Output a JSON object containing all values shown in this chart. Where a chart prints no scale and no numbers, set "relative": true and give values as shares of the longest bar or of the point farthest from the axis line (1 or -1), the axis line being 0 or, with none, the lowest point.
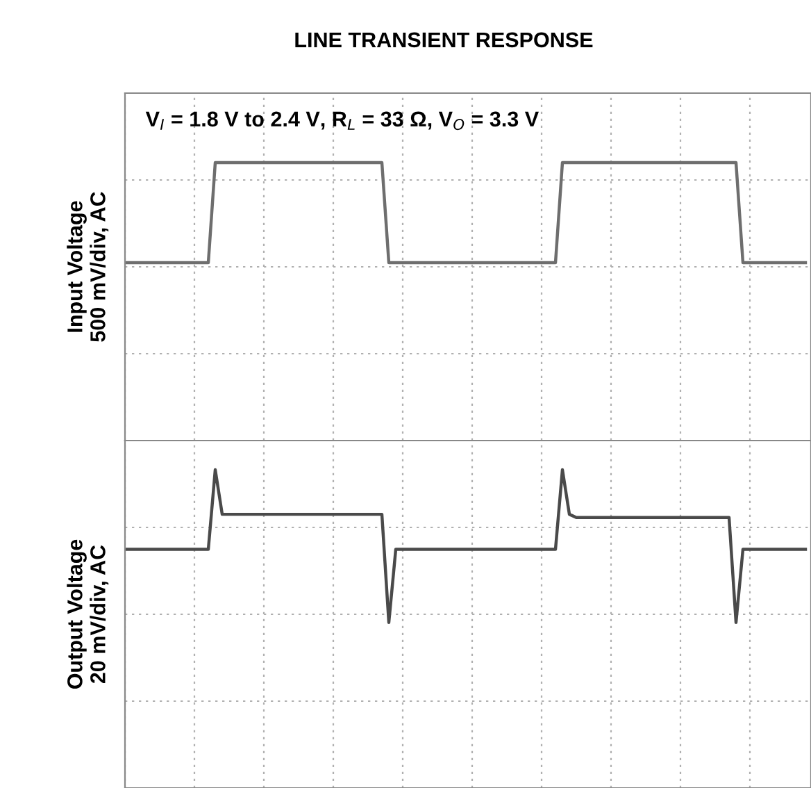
{
  "chart_data": [
    {
      "type": "line",
      "title": "LINE TRANSIENT RESPONSE",
      "ylabel": "Input Voltage\n500 mV/div, AC",
      "annotations": [
        "V$_{I}$ = 1.8 V to 2.4 V, R$_{L}$ = 33 Ω, V$_{O}$ = 3.3 V"
      ],
      "relative": true,
      "grid": true,
      "tick_labels": false,
      "categories": [
        null,
        null,
        null,
        null,
        null,
        null,
        null,
        null,
        null,
        null,
        null,
        null,
        null,
        null,
        null,
        null,
        null,
        null,
        null,
        null,
        null,
        null,
        null,
        null,
        null,
        null,
        null,
        null,
        null,
        null,
        null,
        null,
        null,
        null,
        null,
        null,
        null,
        null,
        null,
        null,
        null,
        null,
        null,
        null,
        null,
        null,
        null,
        null,
        null,
        null,
        null,
        null,
        null,
        null,
        null,
        null,
        null,
        null,
        null,
        null,
        null,
        null,
        null,
        null,
        null,
        null,
        null,
        null,
        null,
        null,
        null,
        null,
        null,
        null,
        null,
        null,
        null,
        null,
        null,
        null,
        null,
        null,
        null,
        null,
        null,
        null,
        null,
        null,
        null,
        null,
        null,
        null,
        null,
        null,
        null,
        null,
        null,
        null,
        null
      ],
      "series": [
        {
          "color": "#6e6e6e",
          "values": [
            0.64,
            0.64,
            0.64,
            0.64,
            0.64,
            0.64,
            0.64,
            0.64,
            0.64,
            0.64,
            0.64,
            0.64,
            0.64,
            1,
            1,
            1,
            1,
            1,
            1,
            1,
            1,
            1,
            1,
            1,
            1,
            1,
            1,
            1,
            1,
            1,
            1,
            1,
            1,
            1,
            1,
            1,
            1,
            1,
            0.64,
            0.64,
            0.64,
            0.64,
            0.64,
            0.64,
            0.64,
            0.64,
            0.64,
            0.64,
            0.64,
            0.64,
            0.64,
            0.64,
            0.64,
            0.64,
            0.64,
            0.64,
            0.64,
            0.64,
            0.64,
            0.64,
            0.64,
            0.64,
            0.64,
            1,
            1,
            1,
            1,
            1,
            1,
            1,
            1,
            1,
            1,
            1,
            1,
            1,
            1,
            1,
            1,
            1,
            1,
            1,
            1,
            1,
            1,
            1,
            1,
            1,
            1,
            0.64,
            0.64,
            0.64,
            0.64,
            0.64,
            0.64,
            0.64,
            0.64,
            0.64,
            0.64
          ]
        }
      ]
    },
    {
      "type": "line",
      "ylabel": "Output Voltage\n20 mV/div, AC",
      "relative": true,
      "grid": true,
      "tick_labels": false,
      "categories": [
        null,
        null,
        null,
        null,
        null,
        null,
        null,
        null,
        null,
        null,
        null,
        null,
        null,
        null,
        null,
        null,
        null,
        null,
        null,
        null,
        null,
        null,
        null,
        null,
        null,
        null,
        null,
        null,
        null,
        null,
        null,
        null,
        null,
        null,
        null,
        null,
        null,
        null,
        null,
        null,
        null,
        null,
        null,
        null,
        null,
        null,
        null,
        null,
        null,
        null,
        null,
        null,
        null,
        null,
        null,
        null,
        null,
        null,
        null,
        null,
        null,
        null,
        null,
        null,
        null,
        null,
        null,
        null,
        null,
        null,
        null,
        null,
        null,
        null,
        null,
        null,
        null,
        null,
        null,
        null,
        null,
        null,
        null,
        null,
        null,
        null,
        null,
        null,
        null,
        null,
        null,
        null,
        null,
        null,
        null,
        null,
        null,
        null,
        null
      ],
      "series": [
        {
          "color": "#4a4a4a",
          "values": [
            0.75,
            0.75,
            0.75,
            0.75,
            0.75,
            0.75,
            0.75,
            0.75,
            0.75,
            0.75,
            0.75,
            0.75,
            0.75,
            1,
            0.86,
            0.86,
            0.86,
            0.86,
            0.86,
            0.86,
            0.86,
            0.86,
            0.86,
            0.86,
            0.86,
            0.86,
            0.86,
            0.86,
            0.86,
            0.86,
            0.86,
            0.86,
            0.86,
            0.86,
            0.86,
            0.86,
            0.86,
            0.86,
            0.52,
            0.75,
            0.75,
            0.75,
            0.75,
            0.75,
            0.75,
            0.75,
            0.75,
            0.75,
            0.75,
            0.75,
            0.75,
            0.75,
            0.75,
            0.75,
            0.75,
            0.75,
            0.75,
            0.75,
            0.75,
            0.75,
            0.75,
            0.75,
            0.75,
            1,
            0.86,
            0.85,
            0.85,
            0.85,
            0.85,
            0.85,
            0.85,
            0.85,
            0.85,
            0.85,
            0.85,
            0.85,
            0.85,
            0.85,
            0.85,
            0.85,
            0.85,
            0.85,
            0.85,
            0.85,
            0.85,
            0.85,
            0.85,
            0.85,
            0.52,
            0.75,
            0.75,
            0.75,
            0.75,
            0.75,
            0.75,
            0.75,
            0.75,
            0.75,
            0.75
          ]
        }
      ]
    }
  ]
}
